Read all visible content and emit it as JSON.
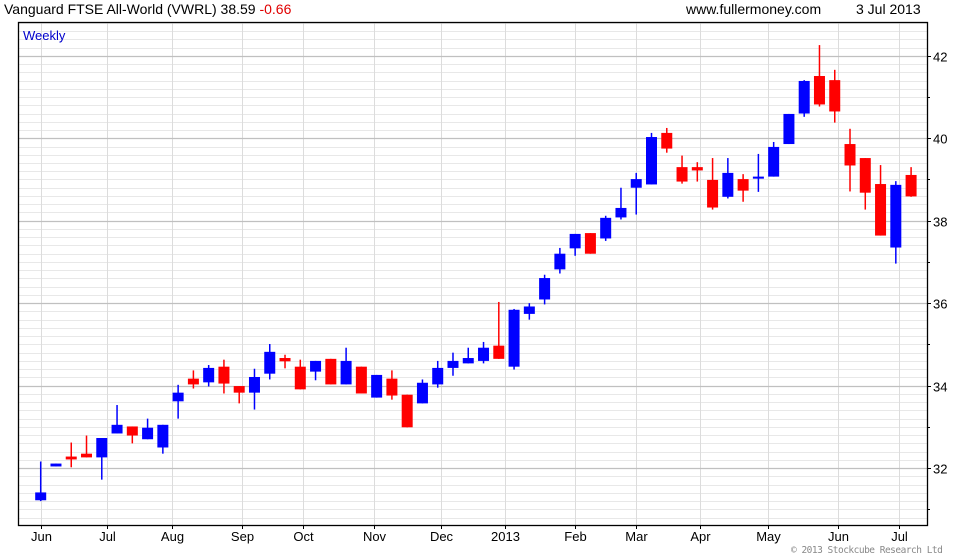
{
  "header": {
    "title": "Vanguard FTSE All-World (VWRL) 38.59",
    "change": "-0.66",
    "site": "www.fullermoney.com",
    "date": "3 Jul 2013"
  },
  "period_label": "Weekly",
  "copyright": "© 2013 Stockcube Research Ltd",
  "colors": {
    "up": "#0000ff",
    "down": "#ff0000",
    "grid_major": "#c0c0c0",
    "grid_minor": "#e8e8e8"
  },
  "chart_data": {
    "type": "candlestick",
    "title": "Vanguard FTSE All-World (VWRL)",
    "ylim": [
      30.62,
      42.82
    ],
    "y_ticks": [
      32,
      34,
      36,
      38,
      40,
      42
    ],
    "y_minor_step": 0.2,
    "grid": true,
    "x_ticks": [
      {
        "label": "Jun",
        "week": 0
      },
      {
        "label": "Jul",
        "week": 4.35
      },
      {
        "label": "Aug",
        "week": 8.6
      },
      {
        "label": "Sep",
        "week": 13.2
      },
      {
        "label": "Oct",
        "week": 17.2
      },
      {
        "label": "Nov",
        "week": 21.8
      },
      {
        "label": "Dec",
        "week": 26.2
      },
      {
        "label": "2013",
        "week": 30.4
      },
      {
        "label": "Feb",
        "week": 35.0
      },
      {
        "label": "Mar",
        "week": 39.0
      },
      {
        "label": "Apr",
        "week": 43.2
      },
      {
        "label": "May",
        "week": 47.6
      },
      {
        "label": "Jun",
        "week": 52.2
      },
      {
        "label": "Jul",
        "week": 56.2
      }
    ],
    "ohlc": [
      [
        31.22,
        32.16,
        31.2,
        31.41
      ],
      [
        32.04,
        32.11,
        32.04,
        32.11
      ],
      [
        32.28,
        32.62,
        32.02,
        32.21
      ],
      [
        32.35,
        32.79,
        32.26,
        32.26
      ],
      [
        32.26,
        32.73,
        31.72,
        32.73
      ],
      [
        32.84,
        33.53,
        32.84,
        33.05
      ],
      [
        33.01,
        33.01,
        32.6,
        32.79
      ],
      [
        32.7,
        33.2,
        32.7,
        32.98
      ],
      [
        32.5,
        33.05,
        32.35,
        33.05
      ],
      [
        33.62,
        34.02,
        33.2,
        33.83
      ],
      [
        34.17,
        34.37,
        33.93,
        34.03
      ],
      [
        34.08,
        34.5,
        33.98,
        34.43
      ],
      [
        34.46,
        34.63,
        33.81,
        34.05
      ],
      [
        33.99,
        33.99,
        33.57,
        33.83
      ],
      [
        33.83,
        34.41,
        33.42,
        34.21
      ],
      [
        34.29,
        35.01,
        34.15,
        34.82
      ],
      [
        34.67,
        34.75,
        34.42,
        34.59
      ],
      [
        34.46,
        34.63,
        33.91,
        33.91
      ],
      [
        34.34,
        34.6,
        34.13,
        34.6
      ],
      [
        34.65,
        34.65,
        34.03,
        34.03
      ],
      [
        34.03,
        34.92,
        34.03,
        34.6
      ],
      [
        34.46,
        34.46,
        33.81,
        33.81
      ],
      [
        33.71,
        34.26,
        33.71,
        34.26
      ],
      [
        34.17,
        34.37,
        33.66,
        33.76
      ],
      [
        33.78,
        33.78,
        32.99,
        32.99
      ],
      [
        33.57,
        34.15,
        33.57,
        34.07
      ],
      [
        34.03,
        34.6,
        33.95,
        34.43
      ],
      [
        34.43,
        34.8,
        34.24,
        34.6
      ],
      [
        34.54,
        34.92,
        34.54,
        34.67
      ],
      [
        34.6,
        35.06,
        34.54,
        34.92
      ],
      [
        34.97,
        36.03,
        34.65,
        34.65
      ],
      [
        34.46,
        35.86,
        34.39,
        35.84
      ],
      [
        35.74,
        36.0,
        35.6,
        35.92
      ],
      [
        36.09,
        36.69,
        35.97,
        36.61
      ],
      [
        36.82,
        37.34,
        36.72,
        37.2
      ],
      [
        37.33,
        37.68,
        37.15,
        37.68
      ],
      [
        37.7,
        37.7,
        37.2,
        37.2
      ],
      [
        37.57,
        38.12,
        37.51,
        38.07
      ],
      [
        38.08,
        38.8,
        38.03,
        38.31
      ],
      [
        38.8,
        39.16,
        38.15,
        39.01
      ],
      [
        38.88,
        40.13,
        38.88,
        40.03
      ],
      [
        40.13,
        40.25,
        39.65,
        39.75
      ],
      [
        39.3,
        39.58,
        38.9,
        38.95
      ],
      [
        39.3,
        39.42,
        38.95,
        39.22
      ],
      [
        38.99,
        39.52,
        38.27,
        38.32
      ],
      [
        38.58,
        39.52,
        38.54,
        39.16
      ],
      [
        39.01,
        39.13,
        38.46,
        38.73
      ],
      [
        39.02,
        39.62,
        38.7,
        39.07
      ],
      [
        39.07,
        39.91,
        39.07,
        39.79
      ],
      [
        39.86,
        40.59,
        39.86,
        40.59
      ],
      [
        40.6,
        41.41,
        40.52,
        41.39
      ],
      [
        41.51,
        42.26,
        40.77,
        40.82
      ],
      [
        41.41,
        41.66,
        40.38,
        40.65
      ],
      [
        39.86,
        40.23,
        38.71,
        39.34
      ],
      [
        39.52,
        39.52,
        38.27,
        38.68
      ],
      [
        38.89,
        39.35,
        37.64,
        37.64
      ],
      [
        37.35,
        38.96,
        36.96,
        38.87
      ],
      [
        39.11,
        39.3,
        38.58,
        38.59
      ]
    ]
  }
}
